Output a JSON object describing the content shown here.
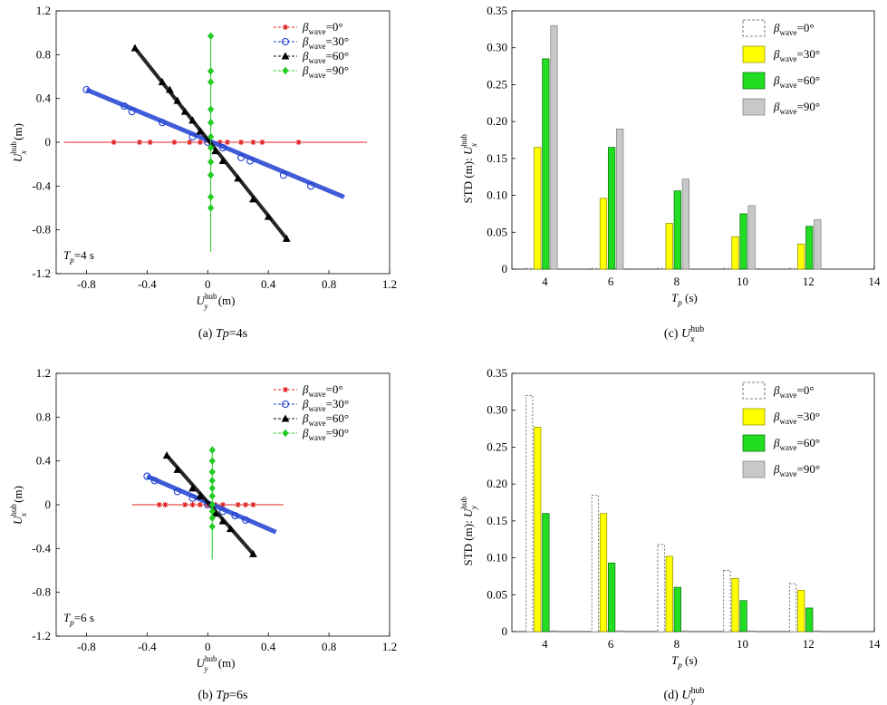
{
  "chart_data": [
    {
      "id": "a",
      "type": "scatter",
      "caption": {
        "prefix": "(a) ",
        "italic": "Tp",
        "suffix": "=4s"
      },
      "annotation": {
        "main": "T",
        "sub": "p",
        "rest": "=4 s"
      },
      "xlabel": {
        "main": "U",
        "sup": "hub",
        "sub": "y",
        "unit": " (m)"
      },
      "ylabel": {
        "main": "U",
        "sup": "hub",
        "sub": "x",
        "unit": " (m)"
      },
      "xlim": [
        -1.0,
        1.2
      ],
      "ylim": [
        -1.2,
        1.2
      ],
      "xticks": [
        "-0.8",
        "-0.4",
        "0",
        "0.4",
        "0.8",
        "1.2"
      ],
      "xtick_values": [
        -0.8,
        -0.4,
        0,
        0.4,
        0.8,
        1.2
      ],
      "yticks": [
        "1.2",
        "0.8",
        "0.4",
        "0",
        "-0.4",
        "-0.8",
        "-1.2"
      ],
      "ytick_values": [
        1.2,
        0.8,
        0.4,
        0,
        -0.4,
        -0.8,
        -1.2
      ],
      "series": [
        {
          "name": "βwave=0°",
          "label_main": "β",
          "label_sub": "wave",
          "label_rest": "=0°",
          "color": "#e02020",
          "marker": "star",
          "line": [
            [
              -0.95,
              0
            ],
            [
              1.05,
              0
            ]
          ],
          "points": [
            [
              -0.62,
              0
            ],
            [
              -0.45,
              0
            ],
            [
              -0.38,
              0
            ],
            [
              -0.22,
              0
            ],
            [
              -0.12,
              0
            ],
            [
              -0.05,
              0
            ],
            [
              0.02,
              0
            ],
            [
              0.08,
              0
            ],
            [
              0.13,
              0
            ],
            [
              0.22,
              0
            ],
            [
              0.3,
              0
            ],
            [
              0.36,
              0
            ],
            [
              0.6,
              0
            ]
          ]
        },
        {
          "name": "βwave=30°",
          "label_main": "β",
          "label_sub": "wave",
          "label_rest": "=30°",
          "color": "#1f3fd0",
          "marker": "circle",
          "line": [
            [
              -0.8,
              0.48
            ],
            [
              0.9,
              -0.5
            ]
          ],
          "points": [
            [
              -0.8,
              0.48
            ],
            [
              -0.55,
              0.33
            ],
            [
              -0.5,
              0.28
            ],
            [
              -0.3,
              0.18
            ],
            [
              -0.1,
              0.05
            ],
            [
              0.0,
              0.0
            ],
            [
              0.1,
              -0.05
            ],
            [
              0.22,
              -0.14
            ],
            [
              0.28,
              -0.17
            ],
            [
              0.5,
              -0.3
            ],
            [
              0.68,
              -0.4
            ]
          ]
        },
        {
          "name": "βwave=60°",
          "label_main": "β",
          "label_sub": "wave",
          "label_rest": "=60°",
          "color": "#000000",
          "marker": "triangle",
          "line": [
            [
              -0.48,
              0.86
            ],
            [
              0.52,
              -0.88
            ]
          ],
          "points": [
            [
              -0.48,
              0.86
            ],
            [
              -0.3,
              0.55
            ],
            [
              -0.25,
              0.48
            ],
            [
              -0.2,
              0.38
            ],
            [
              -0.15,
              0.28
            ],
            [
              -0.1,
              0.2
            ],
            [
              -0.05,
              0.1
            ],
            [
              0.05,
              -0.08
            ],
            [
              0.1,
              -0.17
            ],
            [
              0.2,
              -0.33
            ],
            [
              0.3,
              -0.52
            ],
            [
              0.4,
              -0.68
            ],
            [
              0.52,
              -0.88
            ]
          ]
        },
        {
          "name": "βwave=90°",
          "label_main": "β",
          "label_sub": "wave",
          "label_rest": "=90°",
          "color": "#22cc22",
          "marker": "diamond",
          "line": [
            [
              0.02,
              0.98
            ],
            [
              0.02,
              -1.0
            ]
          ],
          "points": [
            [
              0.02,
              0.97
            ],
            [
              0.02,
              0.65
            ],
            [
              0.02,
              0.55
            ],
            [
              0.02,
              0.3
            ],
            [
              0.02,
              0.18
            ],
            [
              0.02,
              0.05
            ],
            [
              0.02,
              -0.05
            ],
            [
              0.02,
              -0.18
            ],
            [
              0.02,
              -0.3
            ],
            [
              0.02,
              -0.5
            ],
            [
              0.02,
              -0.6
            ]
          ]
        }
      ]
    },
    {
      "id": "b",
      "type": "scatter",
      "caption": {
        "prefix": "(b) ",
        "italic": "Tp",
        "suffix": "=6s"
      },
      "annotation": {
        "main": "T",
        "sub": "p",
        "rest": "=6 s"
      },
      "xlabel": {
        "main": "U",
        "sup": "hub",
        "sub": "y",
        "unit": " (m)"
      },
      "ylabel": {
        "main": "U",
        "sup": "hub",
        "sub": "x",
        "unit": " (m)"
      },
      "xlim": [
        -1.0,
        1.2
      ],
      "ylim": [
        -1.2,
        1.2
      ],
      "xticks": [
        "-0.8",
        "-0.4",
        "0",
        "0.4",
        "0.8",
        "1.2"
      ],
      "xtick_values": [
        -0.8,
        -0.4,
        0,
        0.4,
        0.8,
        1.2
      ],
      "yticks": [
        "1.2",
        "0.8",
        "0.4",
        "0",
        "-0.4",
        "-0.8",
        "-1.2"
      ],
      "ytick_values": [
        1.2,
        0.8,
        0.4,
        0,
        -0.4,
        -0.8,
        -1.2
      ],
      "series": [
        {
          "name": "βwave=0°",
          "label_main": "β",
          "label_sub": "wave",
          "label_rest": "=0°",
          "color": "#e02020",
          "marker": "star",
          "line": [
            [
              -0.5,
              0
            ],
            [
              0.5,
              0
            ]
          ],
          "points": [
            [
              -0.32,
              0
            ],
            [
              -0.28,
              0
            ],
            [
              -0.15,
              0
            ],
            [
              -0.1,
              0
            ],
            [
              -0.05,
              0
            ],
            [
              0.0,
              0
            ],
            [
              0.05,
              0
            ],
            [
              0.1,
              0
            ],
            [
              0.2,
              0
            ],
            [
              0.25,
              0
            ],
            [
              0.3,
              0
            ]
          ]
        },
        {
          "name": "βwave=30°",
          "label_main": "β",
          "label_sub": "wave",
          "label_rest": "=30°",
          "color": "#1f3fd0",
          "marker": "circle",
          "line": [
            [
              -0.4,
              0.26
            ],
            [
              0.45,
              -0.25
            ]
          ],
          "points": [
            [
              -0.4,
              0.26
            ],
            [
              -0.35,
              0.22
            ],
            [
              -0.2,
              0.12
            ],
            [
              -0.1,
              0.06
            ],
            [
              0.0,
              0.0
            ],
            [
              0.1,
              -0.06
            ],
            [
              0.18,
              -0.1
            ],
            [
              0.25,
              -0.14
            ]
          ]
        },
        {
          "name": "βwave=60°",
          "label_main": "β",
          "label_sub": "wave",
          "label_rest": "=60°",
          "color": "#000000",
          "marker": "triangle",
          "line": [
            [
              -0.27,
              0.45
            ],
            [
              0.3,
              -0.45
            ]
          ],
          "points": [
            [
              -0.27,
              0.45
            ],
            [
              -0.2,
              0.32
            ],
            [
              -0.1,
              0.15
            ],
            [
              -0.05,
              0.08
            ],
            [
              0.05,
              -0.08
            ],
            [
              0.1,
              -0.15
            ],
            [
              0.15,
              -0.22
            ],
            [
              0.3,
              -0.45
            ]
          ]
        },
        {
          "name": "βwave=90°",
          "label_main": "β",
          "label_sub": "wave",
          "label_rest": "=90°",
          "color": "#22cc22",
          "marker": "diamond",
          "line": [
            [
              0.03,
              0.5
            ],
            [
              0.03,
              -0.5
            ]
          ],
          "points": [
            [
              0.03,
              0.5
            ],
            [
              0.03,
              0.4
            ],
            [
              0.03,
              0.3
            ],
            [
              0.03,
              0.22
            ],
            [
              0.03,
              0.15
            ],
            [
              0.03,
              0.08
            ],
            [
              0.03,
              0.0
            ],
            [
              0.03,
              -0.06
            ],
            [
              0.03,
              -0.12
            ],
            [
              0.03,
              -0.2
            ]
          ]
        }
      ]
    },
    {
      "id": "c",
      "type": "bar",
      "caption": {
        "prefix": "(c) ",
        "main": "U",
        "sup": "hub",
        "sub": "x"
      },
      "ylabel": {
        "prefix": "STD (m): ",
        "main": "U",
        "sup": "hub",
        "sub": "x"
      },
      "xlabel": {
        "main": "T",
        "sub": "p",
        "unit": " (s)"
      },
      "categories": [
        4,
        6,
        8,
        10,
        12
      ],
      "xlim": [
        3,
        14
      ],
      "xticks": [
        "4",
        "6",
        "8",
        "10",
        "12",
        "14"
      ],
      "xtick_values": [
        4,
        6,
        8,
        10,
        12,
        14
      ],
      "ylim": [
        0,
        0.35
      ],
      "yticks": [
        "0",
        "0.05",
        "0.10",
        "0.15",
        "0.20",
        "0.25",
        "0.30",
        "0.35"
      ],
      "ytick_values": [
        0,
        0.05,
        0.1,
        0.15,
        0.2,
        0.25,
        0.3,
        0.35
      ],
      "series": [
        {
          "name": "βwave=0°",
          "label_main": "β",
          "label_sub": "wave",
          "label_rest": "=0°",
          "fill": "#ffffff",
          "stroke": "#555555",
          "dashed": true,
          "values": [
            0.0,
            0.0,
            0.0,
            0.0,
            0.0
          ]
        },
        {
          "name": "βwave=30°",
          "label_main": "β",
          "label_sub": "wave",
          "label_rest": "=30°",
          "fill": "#ffff00",
          "stroke": "#999900",
          "dashed": false,
          "values": [
            0.165,
            0.096,
            0.062,
            0.044,
            0.034
          ]
        },
        {
          "name": "βwave=60°",
          "label_main": "β",
          "label_sub": "wave",
          "label_rest": "=60°",
          "fill": "#22dd22",
          "stroke": "#117711",
          "dashed": false,
          "values": [
            0.285,
            0.165,
            0.106,
            0.075,
            0.058
          ]
        },
        {
          "name": "βwave=90°",
          "label_main": "β",
          "label_sub": "wave",
          "label_rest": "=90°",
          "fill": "#c8c8c8",
          "stroke": "#888888",
          "dashed": false,
          "values": [
            0.33,
            0.19,
            0.122,
            0.086,
            0.067
          ]
        }
      ]
    },
    {
      "id": "d",
      "type": "bar",
      "caption": {
        "prefix": "(d) ",
        "main": "U",
        "sup": "hub",
        "sub": "y"
      },
      "ylabel": {
        "prefix": "STD (m): ",
        "main": "U",
        "sup": "hub",
        "sub": "y"
      },
      "xlabel": {
        "main": "T",
        "sub": "p",
        "unit": " (s)"
      },
      "categories": [
        4,
        6,
        8,
        10,
        12
      ],
      "xlim": [
        3,
        14
      ],
      "xticks": [
        "4",
        "6",
        "8",
        "10",
        "12",
        "14"
      ],
      "xtick_values": [
        4,
        6,
        8,
        10,
        12,
        14
      ],
      "ylim": [
        0,
        0.35
      ],
      "yticks": [
        "0",
        "0.05",
        "0.10",
        "0.15",
        "0.20",
        "0.25",
        "0.30",
        "0.35"
      ],
      "ytick_values": [
        0,
        0.05,
        0.1,
        0.15,
        0.2,
        0.25,
        0.3,
        0.35
      ],
      "series": [
        {
          "name": "βwave=0°",
          "label_main": "β",
          "label_sub": "wave",
          "label_rest": "=0°",
          "fill": "#ffffff",
          "stroke": "#555555",
          "dashed": true,
          "values": [
            0.32,
            0.185,
            0.118,
            0.083,
            0.065
          ]
        },
        {
          "name": "βwave=30°",
          "label_main": "β",
          "label_sub": "wave",
          "label_rest": "=30°",
          "fill": "#ffff00",
          "stroke": "#999900",
          "dashed": false,
          "values": [
            0.277,
            0.16,
            0.102,
            0.072,
            0.056
          ]
        },
        {
          "name": "βwave=60°",
          "label_main": "β",
          "label_sub": "wave",
          "label_rest": "=60°",
          "fill": "#22dd22",
          "stroke": "#117711",
          "dashed": false,
          "values": [
            0.16,
            0.093,
            0.06,
            0.042,
            0.032
          ]
        },
        {
          "name": "βwave=90°",
          "label_main": "β",
          "label_sub": "wave",
          "label_rest": "=90°",
          "fill": "#c8c8c8",
          "stroke": "#888888",
          "dashed": false,
          "values": [
            0.0,
            0.0,
            0.0,
            0.0,
            0.0
          ]
        }
      ]
    }
  ]
}
